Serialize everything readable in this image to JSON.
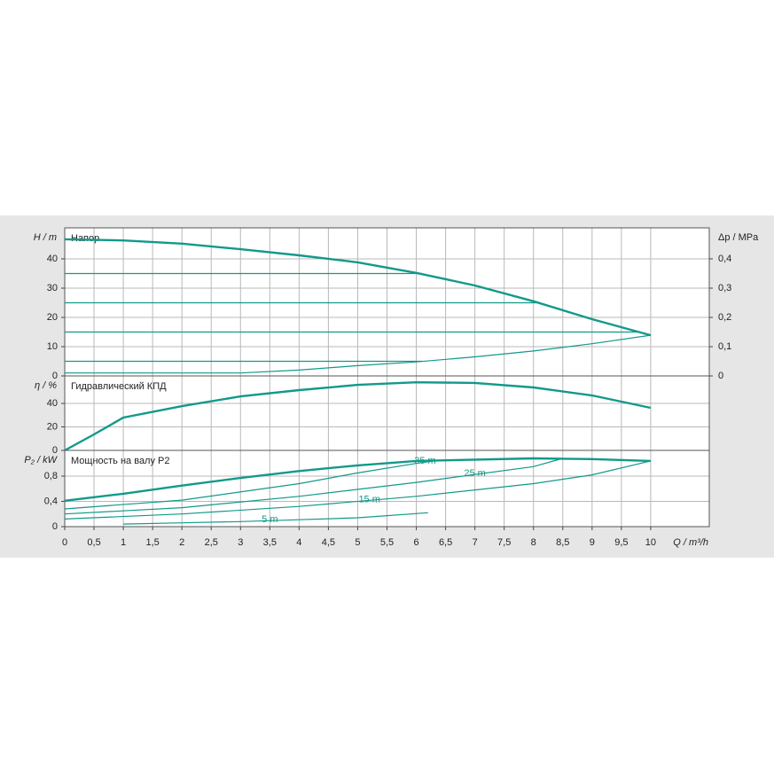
{
  "chart_data": [
    {
      "type": "line",
      "title": "Напор",
      "ylabel": "H / m",
      "y2label": "Δp / MPa",
      "xlim": [
        0,
        11
      ],
      "ylim": [
        0,
        50.6
      ],
      "yticks": [
        0,
        10,
        20,
        30,
        40
      ],
      "y2lim": [
        0,
        0.506
      ],
      "y2ticks": [
        0,
        {
          "value": 0.1,
          "label": "0,1"
        },
        {
          "value": 0.2,
          "label": "0,2"
        },
        {
          "value": 0.3,
          "label": "0,3"
        },
        {
          "value": 0.4,
          "label": "0,4"
        }
      ],
      "grid": true,
      "color": "#12998a",
      "series": [
        {
          "x": [
            0,
            1,
            2,
            3,
            4,
            5,
            6,
            7,
            8,
            9,
            10
          ],
          "values": [
            46.7,
            46.3,
            45.2,
            43.3,
            41.2,
            38.8,
            35.2,
            30.9,
            25.5,
            19.4,
            13.9
          ]
        },
        {
          "x": [
            0,
            1,
            2,
            3,
            4,
            5,
            6,
            7,
            8,
            9,
            10
          ],
          "values": [
            1,
            1,
            1,
            1,
            2,
            3.5,
            4.8,
            6.5,
            8.5,
            11,
            13.9
          ]
        },
        {
          "x": [
            0,
            6.1
          ],
          "values": [
            35,
            35
          ]
        },
        {
          "x": [
            0,
            8.1
          ],
          "values": [
            25,
            25
          ]
        },
        {
          "x": [
            0,
            9.8
          ],
          "values": [
            15,
            15
          ]
        },
        {
          "x": [
            0,
            6.1
          ],
          "values": [
            5,
            5
          ]
        }
      ]
    },
    {
      "type": "line",
      "title": "Гидравлический КПД",
      "ylabel": "η / %",
      "xlim": [
        0,
        11
      ],
      "ylim": [
        0,
        63.4
      ],
      "yticks": [
        0,
        20,
        40
      ],
      "grid": true,
      "color": "#12998a",
      "series": [
        {
          "x": [
            0,
            0.5,
            1,
            2,
            3,
            4,
            5,
            6,
            7,
            8,
            9,
            10
          ],
          "values": [
            0,
            13.6,
            27.9,
            37.7,
            46,
            51.3,
            55.8,
            58,
            57.4,
            53.6,
            46.8,
            36.2
          ]
        }
      ]
    },
    {
      "type": "line",
      "title": "Мощность на валу P2",
      "ylabel": "P₂ / kW",
      "xlabel": "Q / m³/h",
      "xlim": [
        0,
        11
      ],
      "ylim": [
        0,
        1.207
      ],
      "yticks": [
        0,
        {
          "value": 0.4,
          "label": "0,4"
        },
        {
          "value": 0.8,
          "label": "0,8"
        }
      ],
      "xticks": [
        0,
        {
          "value": 0.5,
          "label": "0,5"
        },
        1,
        {
          "value": 1.5,
          "label": "1,5"
        },
        2,
        {
          "value": 2.5,
          "label": "2,5"
        },
        3,
        {
          "value": 3.5,
          "label": "3,5"
        },
        4,
        {
          "value": 4.5,
          "label": "4,5"
        },
        5,
        {
          "value": 5.5,
          "label": "5,5"
        },
        6,
        {
          "value": 6.5,
          "label": "6,5"
        },
        7,
        {
          "value": 7.5,
          "label": "7,5"
        },
        8,
        {
          "value": 8.5,
          "label": "8,5"
        },
        9,
        {
          "value": 9.5,
          "label": "9,5"
        },
        10
      ],
      "grid": true,
      "color": "#12998a",
      "series": [
        {
          "x": [
            0,
            1,
            2,
            3,
            4,
            5,
            6,
            6.5,
            8,
            9,
            10
          ],
          "values": [
            0.41,
            0.52,
            0.65,
            0.77,
            0.88,
            0.97,
            1.04,
            1.05,
            1.08,
            1.07,
            1.04
          ]
        },
        {
          "name": "35 m",
          "x": [
            0,
            2,
            4,
            5,
            6,
            6.3
          ],
          "values": [
            0.28,
            0.42,
            0.68,
            0.85,
            1.0,
            1.04
          ]
        },
        {
          "name": "25 m",
          "x": [
            0,
            2,
            4,
            6,
            8,
            8.5
          ],
          "values": [
            0.2,
            0.3,
            0.48,
            0.7,
            0.95,
            1.08
          ]
        },
        {
          "name": "15 m",
          "x": [
            0,
            2,
            4,
            6,
            8,
            9,
            10
          ],
          "values": [
            0.12,
            0.2,
            0.32,
            0.48,
            0.68,
            0.82,
            1.04
          ]
        },
        {
          "name": "5 m",
          "x": [
            1,
            2,
            3,
            4,
            5,
            6.2
          ],
          "values": [
            0.04,
            0.06,
            0.08,
            0.11,
            0.14,
            0.22
          ]
        }
      ]
    }
  ]
}
